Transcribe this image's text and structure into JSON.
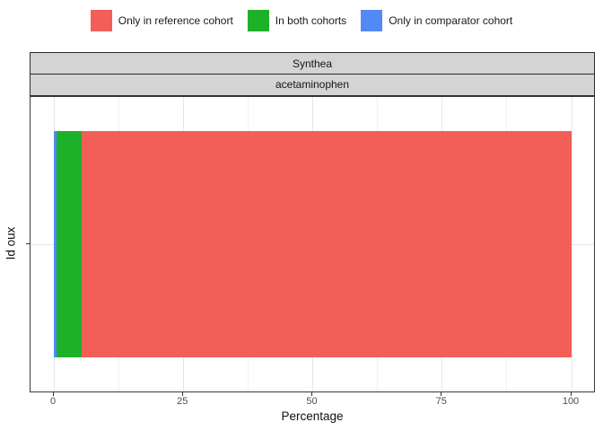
{
  "legend": {
    "items": [
      {
        "label": "Only in reference cohort",
        "color": "#f15f58"
      },
      {
        "label": "In both cohorts",
        "color": "#1db129"
      },
      {
        "label": "Only in comparator cohort",
        "color": "#5389f4"
      }
    ]
  },
  "facets": {
    "dataset": "Synthea",
    "drug": "acetaminophen"
  },
  "axes": {
    "x_title": "Percentage",
    "y_title": "Id oux"
  },
  "chart_data": {
    "type": "bar",
    "orientation": "horizontal",
    "stacked": true,
    "title": "",
    "facet_row_labels": [
      "Synthea",
      "acetaminophen"
    ],
    "categories": [
      ""
    ],
    "series": [
      {
        "name": "Only in comparator cohort",
        "values": [
          0.5
        ],
        "color": "#5389f4"
      },
      {
        "name": "In both cohorts",
        "values": [
          4.9
        ],
        "color": "#1db129"
      },
      {
        "name": "Only in reference cohort",
        "values": [
          94.6
        ],
        "color": "#f15f58"
      }
    ],
    "xlabel": "Percentage",
    "ylabel": "Id oux",
    "xlim": [
      0,
      100
    ],
    "xticks": [
      0,
      25,
      50,
      75,
      100
    ],
    "x_minor_ticks": [
      12.5,
      37.5,
      62.5,
      87.5
    ],
    "grid": true,
    "legend_position": "top"
  }
}
